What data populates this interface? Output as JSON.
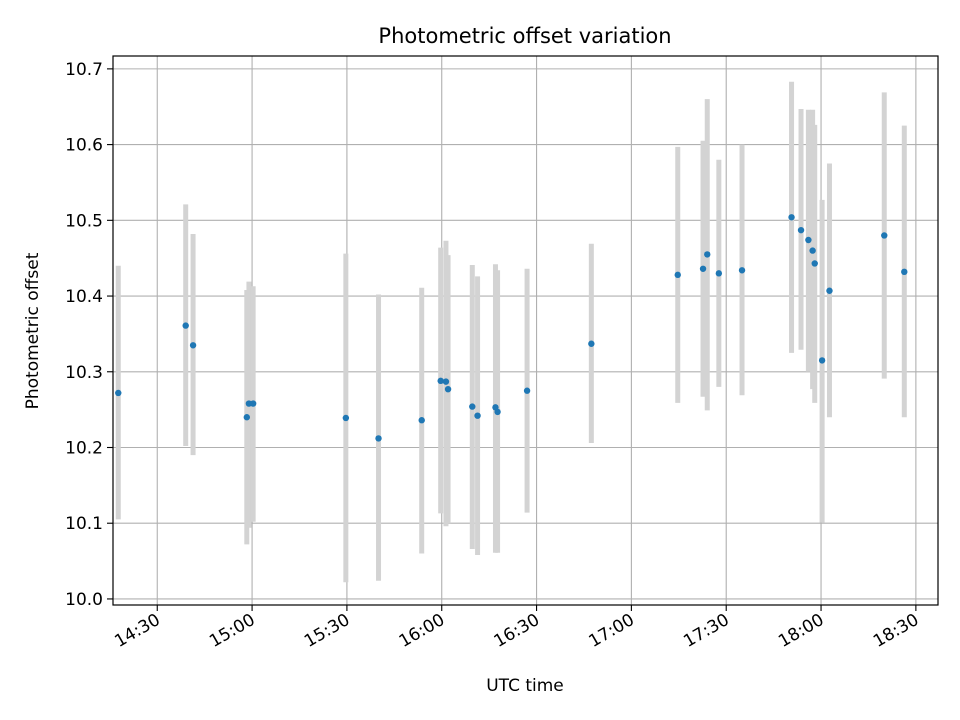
{
  "chart_data": {
    "type": "scatter",
    "title": "Photometric offset variation",
    "xlabel": "UTC time",
    "ylabel": "Photometric offset",
    "x_axis_kind": "time",
    "xlim": [
      "14:16",
      "18:37"
    ],
    "ylim": [
      9.992,
      10.717
    ],
    "grid": true,
    "x_ticks": [
      "14:30",
      "15:00",
      "15:30",
      "16:00",
      "16:30",
      "17:00",
      "17:30",
      "18:00",
      "18:30"
    ],
    "y_ticks": [
      10.0,
      10.1,
      10.2,
      10.3,
      10.4,
      10.5,
      10.6,
      10.7
    ],
    "y_tick_labels": [
      "10.0",
      "10.1",
      "10.2",
      "10.3",
      "10.4",
      "10.5",
      "10.6",
      "10.7"
    ],
    "series": [
      {
        "points": [
          {
            "x": "14:17:40",
            "y": 10.272,
            "ylo": 10.105,
            "yhi": 10.44
          },
          {
            "x": "14:39:00",
            "y": 10.361,
            "ylo": 10.202,
            "yhi": 10.521
          },
          {
            "x": "14:41:20",
            "y": 10.335,
            "ylo": 10.19,
            "yhi": 10.482
          },
          {
            "x": "14:58:20",
            "y": 10.24,
            "ylo": 10.072,
            "yhi": 10.408
          },
          {
            "x": "14:59:00",
            "y": 10.258,
            "ylo": 10.094,
            "yhi": 10.419
          },
          {
            "x": "15:00:20",
            "y": 10.258,
            "ylo": 10.102,
            "yhi": 10.413
          },
          {
            "x": "15:29:40",
            "y": 10.239,
            "ylo": 10.022,
            "yhi": 10.456
          },
          {
            "x": "15:40:00",
            "y": 10.212,
            "ylo": 10.024,
            "yhi": 10.402
          },
          {
            "x": "15:53:40",
            "y": 10.236,
            "ylo": 10.06,
            "yhi": 10.411
          },
          {
            "x": "15:59:40",
            "y": 10.288,
            "ylo": 10.113,
            "yhi": 10.464
          },
          {
            "x": "16:01:20",
            "y": 10.287,
            "ylo": 10.096,
            "yhi": 10.473
          },
          {
            "x": "16:02:00",
            "y": 10.277,
            "ylo": 10.1,
            "yhi": 10.454
          },
          {
            "x": "16:09:40",
            "y": 10.254,
            "ylo": 10.066,
            "yhi": 10.441
          },
          {
            "x": "16:11:20",
            "y": 10.242,
            "ylo": 10.058,
            "yhi": 10.426
          },
          {
            "x": "16:17:00",
            "y": 10.253,
            "ylo": 10.061,
            "yhi": 10.442
          },
          {
            "x": "16:17:40",
            "y": 10.247,
            "ylo": 10.061,
            "yhi": 10.434
          },
          {
            "x": "16:27:00",
            "y": 10.275,
            "ylo": 10.114,
            "yhi": 10.436
          },
          {
            "x": "16:47:20",
            "y": 10.337,
            "ylo": 10.206,
            "yhi": 10.469
          },
          {
            "x": "17:14:40",
            "y": 10.428,
            "ylo": 10.259,
            "yhi": 10.597
          },
          {
            "x": "17:22:40",
            "y": 10.436,
            "ylo": 10.267,
            "yhi": 10.605
          },
          {
            "x": "17:24:00",
            "y": 10.455,
            "ylo": 10.249,
            "yhi": 10.66
          },
          {
            "x": "17:27:40",
            "y": 10.43,
            "ylo": 10.28,
            "yhi": 10.58
          },
          {
            "x": "17:35:00",
            "y": 10.434,
            "ylo": 10.269,
            "yhi": 10.6
          },
          {
            "x": "17:50:40",
            "y": 10.504,
            "ylo": 10.325,
            "yhi": 10.683
          },
          {
            "x": "17:53:40",
            "y": 10.487,
            "ylo": 10.329,
            "yhi": 10.647
          },
          {
            "x": "17:56:00",
            "y": 10.474,
            "ylo": 10.3,
            "yhi": 10.646
          },
          {
            "x": "17:57:20",
            "y": 10.46,
            "ylo": 10.277,
            "yhi": 10.646
          },
          {
            "x": "17:58:00",
            "y": 10.443,
            "ylo": 10.259,
            "yhi": 10.626
          },
          {
            "x": "18:00:20",
            "y": 10.315,
            "ylo": 10.101,
            "yhi": 10.527
          },
          {
            "x": "18:02:40",
            "y": 10.407,
            "ylo": 10.24,
            "yhi": 10.575
          },
          {
            "x": "18:20:00",
            "y": 10.48,
            "ylo": 10.291,
            "yhi": 10.669
          },
          {
            "x": "18:26:20",
            "y": 10.432,
            "ylo": 10.24,
            "yhi": 10.625
          }
        ]
      }
    ],
    "colors": {
      "marker": "#1f77b4",
      "errorbar": "#d3d3d3",
      "grid": "#b0b0b0",
      "axes": "#000000"
    }
  }
}
